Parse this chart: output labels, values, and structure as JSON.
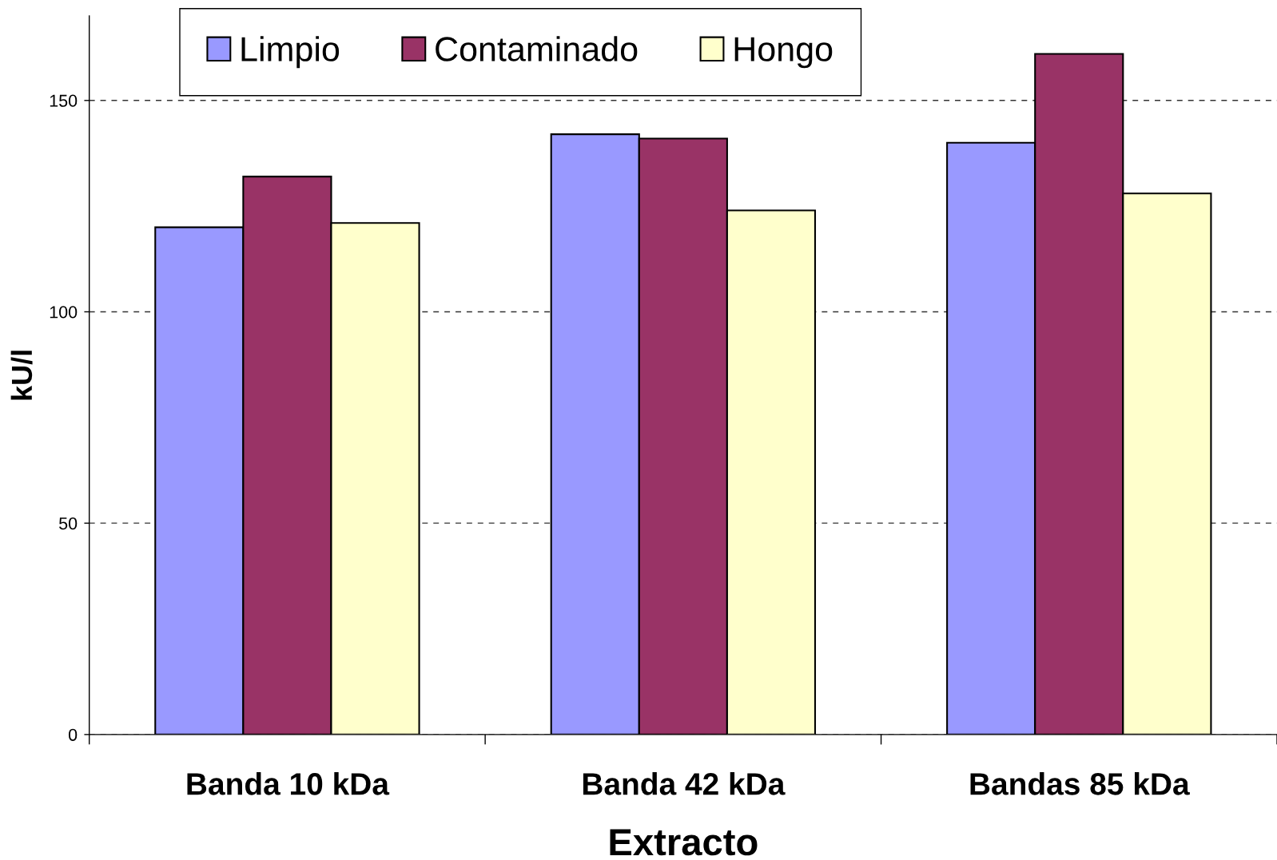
{
  "chart_data": {
    "type": "bar",
    "xlabel": "Extracto",
    "ylabel": "kU/l",
    "categories": [
      "Banda 10 kDa",
      "Banda 42 kDa",
      "Bandas 85 kDa"
    ],
    "series": [
      {
        "name": "Limpio",
        "color": "#9999ff",
        "values": [
          120,
          142,
          140
        ]
      },
      {
        "name": "Contaminado",
        "color": "#993366",
        "values": [
          132,
          141,
          161
        ]
      },
      {
        "name": "Hongo",
        "color": "#ffffcc",
        "values": [
          121,
          124,
          128
        ]
      }
    ],
    "ylim": [
      0,
      170
    ],
    "yticks": [
      0,
      50,
      100,
      150
    ],
    "grid": "y",
    "legend": "top left"
  }
}
